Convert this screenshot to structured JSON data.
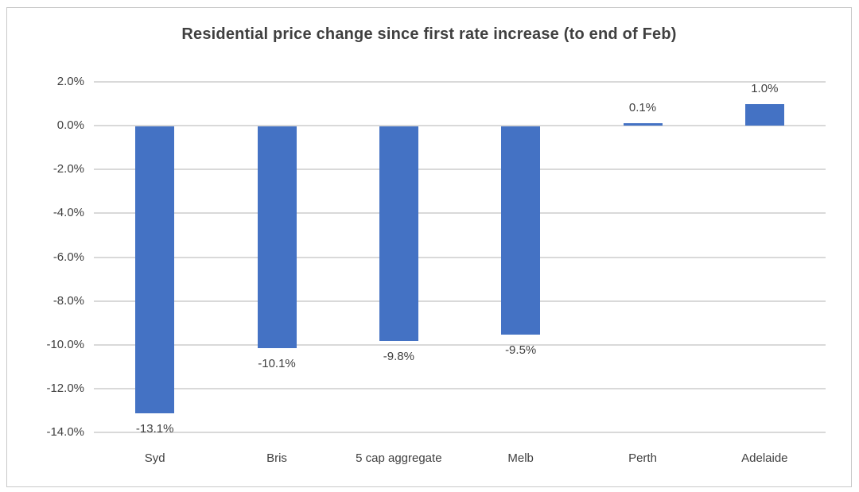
{
  "chart_data": {
    "type": "bar",
    "title": "Residential price change since first rate increase (to end of Feb)",
    "categories": [
      "Syd",
      "Bris",
      "5 cap aggregate",
      "Melb",
      "Perth",
      "Adelaide"
    ],
    "values": [
      -13.1,
      -10.1,
      -9.8,
      -9.5,
      0.1,
      1.0
    ],
    "value_labels": [
      "-13.1%",
      "-10.1%",
      "-9.8%",
      "-9.5%",
      "0.1%",
      "1.0%"
    ],
    "xlabel": "",
    "ylabel": "",
    "ylim": [
      -14,
      2
    ],
    "ytick_step": 2,
    "ytick_labels": [
      "2.0%",
      "0.0%",
      "-2.0%",
      "-4.0%",
      "-6.0%",
      "-8.0%",
      "-10.0%",
      "-12.0%",
      "-14.0%"
    ],
    "grid": true,
    "legend_position": "none",
    "colors": {
      "bar": "#4472C4",
      "gridline": "#D9D9D9",
      "title_text": "#404040",
      "axis_text": "#404040",
      "data_label_text": "#404040",
      "frame_border": "#C9C9C9",
      "background": "#FFFFFF"
    }
  }
}
